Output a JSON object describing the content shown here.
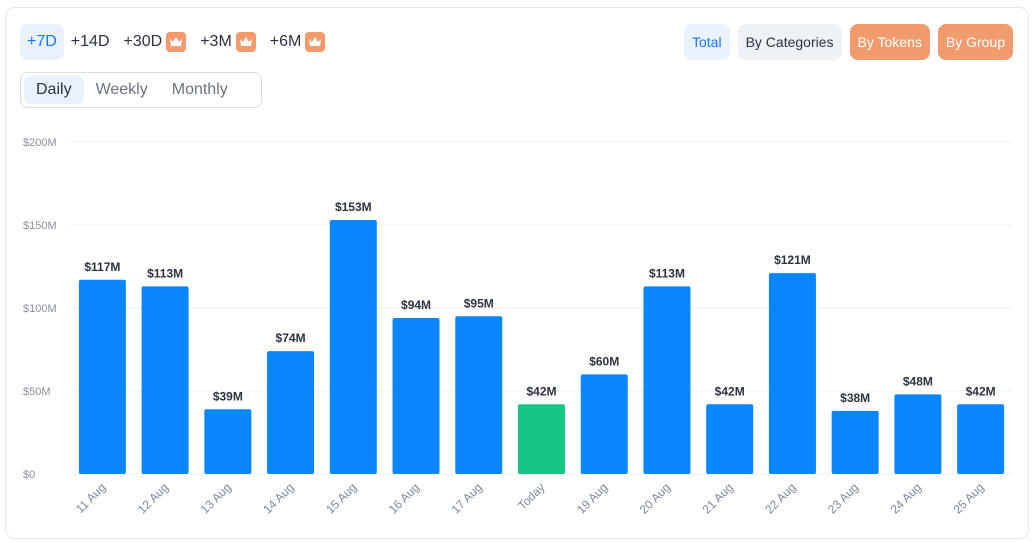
{
  "range_buttons": [
    {
      "label": "+7D",
      "active": true,
      "premium": false
    },
    {
      "label": "+14D",
      "active": false,
      "premium": false
    },
    {
      "label": "+30D",
      "active": false,
      "premium": true
    },
    {
      "label": "+3M",
      "active": false,
      "premium": true
    },
    {
      "label": "+6M",
      "active": false,
      "premium": true
    }
  ],
  "period_buttons": [
    {
      "label": "Daily",
      "active": true
    },
    {
      "label": "Weekly",
      "active": false
    },
    {
      "label": "Monthly",
      "active": false
    }
  ],
  "view_buttons": [
    {
      "label": "Total",
      "style": "total"
    },
    {
      "label": "By Categories",
      "style": "plain"
    },
    {
      "label": "By Tokens",
      "style": "premium"
    },
    {
      "label": "By Group",
      "style": "premium"
    }
  ],
  "colors": {
    "bar": "#0a87ff",
    "today_bar": "#17c684",
    "today_label": "#17c684",
    "grid": "#eceff3",
    "premium": "#f39a6c",
    "accent": "#1677ff"
  },
  "chart_data": {
    "type": "bar",
    "categories": [
      "11 Aug",
      "12 Aug",
      "13 Aug",
      "14 Aug",
      "15 Aug",
      "16 Aug",
      "17 Aug",
      "Today",
      "19 Aug",
      "20 Aug",
      "21 Aug",
      "22 Aug",
      "23 Aug",
      "24 Aug",
      "25 Aug"
    ],
    "values": [
      117,
      113,
      39,
      74,
      153,
      94,
      95,
      42,
      60,
      113,
      42,
      121,
      38,
      48,
      42
    ],
    "value_labels": [
      "$117M",
      "$113M",
      "$39M",
      "$74M",
      "$153M",
      "$94M",
      "$95M",
      "$42M",
      "$60M",
      "$113M",
      "$42M",
      "$121M",
      "$38M",
      "$48M",
      "$42M"
    ],
    "highlight_category": "Today",
    "y_ticks": [
      0,
      50,
      100,
      150,
      200
    ],
    "y_tick_labels": [
      "$0",
      "$50M",
      "$100M",
      "$150M",
      "$200M"
    ],
    "ylim": [
      0,
      200
    ],
    "grid": true,
    "title": "",
    "xlabel": "",
    "ylabel": ""
  }
}
